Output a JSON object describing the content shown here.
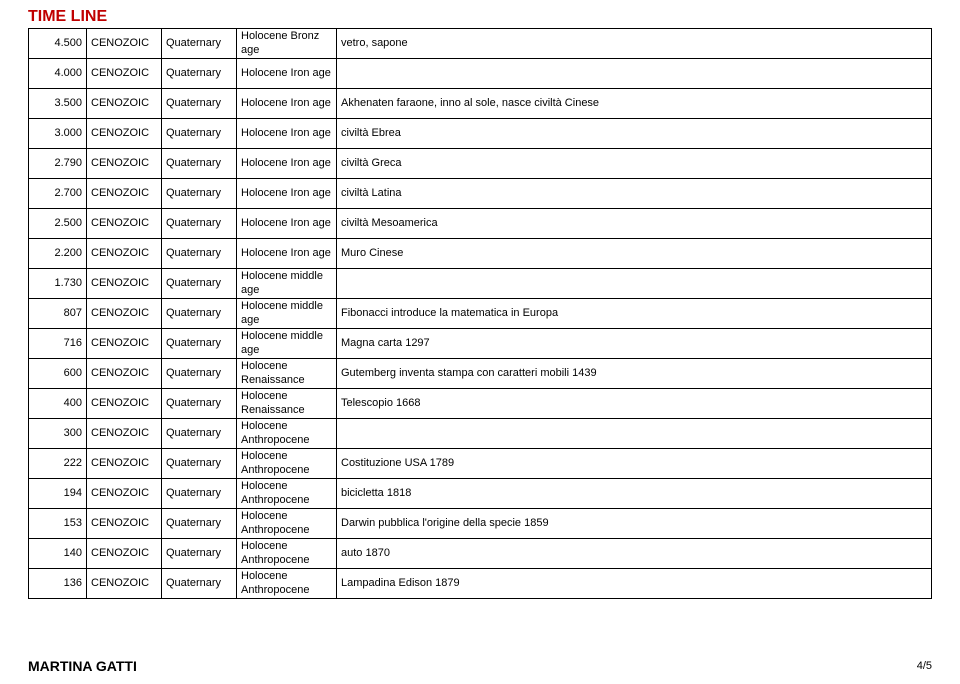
{
  "title": "TIME LINE",
  "footer_author": "MARTINA GATTI",
  "footer_page": "4/5",
  "rows": [
    {
      "t": "4.500",
      "era": "CENOZOIC",
      "period": "Quaternary",
      "epoch": "Holocene Bronz age",
      "event": "vetro, sapone"
    },
    {
      "t": "4.000",
      "era": "CENOZOIC",
      "period": "Quaternary",
      "epoch": "Holocene Iron age",
      "event": ""
    },
    {
      "t": "3.500",
      "era": "CENOZOIC",
      "period": "Quaternary",
      "epoch": "Holocene Iron age",
      "event": "Akhenaten faraone, inno al sole, nasce civiltà Cinese"
    },
    {
      "t": "3.000",
      "era": "CENOZOIC",
      "period": "Quaternary",
      "epoch": "Holocene Iron age",
      "event": "civiltà Ebrea"
    },
    {
      "t": "2.790",
      "era": "CENOZOIC",
      "period": "Quaternary",
      "epoch": "Holocene Iron age",
      "event": "civiltà Greca"
    },
    {
      "t": "2.700",
      "era": "CENOZOIC",
      "period": "Quaternary",
      "epoch": "Holocene Iron age",
      "event": "civiltà Latina"
    },
    {
      "t": "2.500",
      "era": "CENOZOIC",
      "period": "Quaternary",
      "epoch": "Holocene Iron age",
      "event": "civiltà Mesoamerica"
    },
    {
      "t": "2.200",
      "era": "CENOZOIC",
      "period": "Quaternary",
      "epoch": "Holocene Iron age",
      "event": "Muro Cinese"
    },
    {
      "t": "1.730",
      "era": "CENOZOIC",
      "period": "Quaternary",
      "epoch": "Holocene middle age",
      "event": ""
    },
    {
      "t": "807",
      "era": "CENOZOIC",
      "period": "Quaternary",
      "epoch": "Holocene middle age",
      "event": "Fibonacci introduce la matematica in Europa"
    },
    {
      "t": "716",
      "era": "CENOZOIC",
      "period": "Quaternary",
      "epoch": "Holocene middle age",
      "event": "Magna carta 1297"
    },
    {
      "t": "600",
      "era": "CENOZOIC",
      "period": "Quaternary",
      "epoch": "Holocene Renaissance",
      "event": "Gutemberg inventa stampa con caratteri mobili 1439"
    },
    {
      "t": "400",
      "era": "CENOZOIC",
      "period": "Quaternary",
      "epoch": "Holocene Renaissance",
      "event": "Telescopio 1668"
    },
    {
      "t": "300",
      "era": "CENOZOIC",
      "period": "Quaternary",
      "epoch": "Holocene Anthropocene",
      "event": ""
    },
    {
      "t": "222",
      "era": "CENOZOIC",
      "period": "Quaternary",
      "epoch": "Holocene Anthropocene",
      "event": "Costituzione USA 1789"
    },
    {
      "t": "194",
      "era": "CENOZOIC",
      "period": "Quaternary",
      "epoch": "Holocene Anthropocene",
      "event": "bicicletta 1818"
    },
    {
      "t": "153",
      "era": "CENOZOIC",
      "period": "Quaternary",
      "epoch": "Holocene Anthropocene",
      "event": "Darwin pubblica l'origine della specie 1859"
    },
    {
      "t": "140",
      "era": "CENOZOIC",
      "period": "Quaternary",
      "epoch": "Holocene Anthropocene",
      "event": "auto 1870"
    },
    {
      "t": "136",
      "era": "CENOZOIC",
      "period": "Quaternary",
      "epoch": "Holocene Anthropocene",
      "event": "Lampadina Edison 1879"
    }
  ]
}
